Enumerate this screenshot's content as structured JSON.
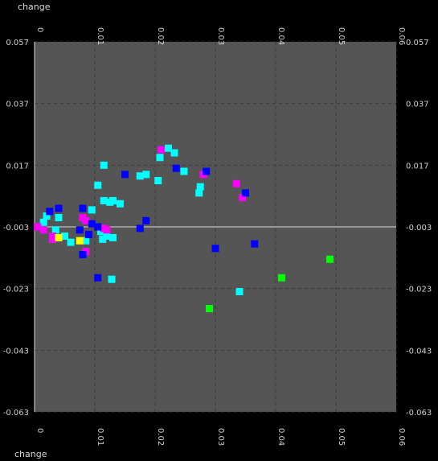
{
  "chart_data": {
    "type": "scatter",
    "xlabel": "change",
    "xlim": [
      0,
      0.06
    ],
    "ylim": [
      -0.063,
      0.057
    ],
    "x_ticks": [
      0,
      0.01,
      0.02,
      0.03,
      0.04,
      0.05,
      0.06
    ],
    "x_tick_labels": [
      "0",
      "0.01",
      "0.02",
      "0.03",
      "0.04",
      "0.05",
      "0.06"
    ],
    "y_ticks": [
      0.057,
      0.037,
      0.017,
      -0.003,
      -0.023,
      -0.043,
      -0.063
    ],
    "y_tick_labels": [
      "0.057",
      "0.037",
      "0.017",
      "-0.003",
      "-0.023",
      "-0.043",
      "-0.063"
    ],
    "grid": true,
    "zero_line_x": 0,
    "zero_line_y": -0.003,
    "colors": {
      "background": "#000000",
      "plot": "#555555",
      "grid": "#3a3a3a",
      "zero_line": "#bdbdbd",
      "text": "#d8d8d8"
    },
    "series": [
      {
        "color": "#00ffff",
        "points": [
          [
            0.0105,
            0.0105
          ],
          [
            0.0115,
            0.0055
          ],
          [
            0.0125,
            0.005
          ],
          [
            0.013,
            0.0055
          ],
          [
            0.0142,
            0.0045
          ],
          [
            0.0175,
            0.0135
          ],
          [
            0.0185,
            0.014
          ],
          [
            0.0205,
            0.012
          ],
          [
            0.0208,
            0.0195
          ],
          [
            0.0222,
            0.0225
          ],
          [
            0.0232,
            0.021
          ],
          [
            0.0248,
            0.015
          ],
          [
            0.0275,
            0.01
          ],
          [
            0.0273,
            0.008
          ],
          [
            0.0115,
            0.017
          ],
          [
            0.0095,
            0.0025
          ],
          [
            0.004,
            0.0
          ],
          [
            0.002,
            0.0005
          ],
          [
            0.0015,
            -0.0015
          ],
          [
            0.0035,
            -0.004
          ],
          [
            0.006,
            -0.008
          ],
          [
            0.0085,
            -0.0075
          ],
          [
            0.011,
            -0.0045
          ],
          [
            0.0113,
            -0.007
          ],
          [
            0.012,
            -0.006
          ],
          [
            0.013,
            -0.0065
          ],
          [
            0.0128,
            -0.02
          ],
          [
            0.034,
            -0.024
          ],
          [
            0.005,
            -0.006
          ]
        ]
      },
      {
        "color": "#ff00ff",
        "points": [
          [
            0.021,
            0.022
          ],
          [
            0.028,
            0.014
          ],
          [
            0.0335,
            0.011
          ],
          [
            0.0345,
            0.0065
          ],
          [
            0.0005,
            -0.003
          ],
          [
            0.0015,
            -0.004
          ],
          [
            0.003,
            -0.006
          ],
          [
            0.008,
            -0.0
          ],
          [
            0.0085,
            -0.001
          ],
          [
            0.0115,
            -0.0035
          ],
          [
            0.012,
            -0.004
          ],
          [
            0.0085,
            -0.011
          ],
          [
            0.003,
            -0.007
          ]
        ]
      },
      {
        "color": "#0000ff",
        "points": [
          [
            0.015,
            0.014
          ],
          [
            0.0235,
            0.016
          ],
          [
            0.0285,
            0.015
          ],
          [
            0.035,
            0.008
          ],
          [
            0.0175,
            -0.0035
          ],
          [
            0.0185,
            -0.001
          ],
          [
            0.03,
            -0.01
          ],
          [
            0.0365,
            -0.0085
          ],
          [
            0.0025,
            0.002
          ],
          [
            0.004,
            0.003
          ],
          [
            0.008,
            0.003
          ],
          [
            0.0075,
            -0.004
          ],
          [
            0.009,
            -0.0055
          ],
          [
            0.0095,
            -0.002
          ],
          [
            0.0105,
            -0.003
          ],
          [
            0.008,
            -0.012
          ],
          [
            0.0105,
            -0.0195
          ]
        ]
      },
      {
        "color": "#00ff00",
        "points": [
          [
            0.049,
            -0.0135
          ],
          [
            0.041,
            -0.0195
          ],
          [
            0.029,
            -0.0295
          ]
        ]
      },
      {
        "color": "#ffff00",
        "points": [
          [
            0.004,
            -0.0065
          ],
          [
            0.0075,
            -0.0075
          ]
        ]
      }
    ]
  }
}
